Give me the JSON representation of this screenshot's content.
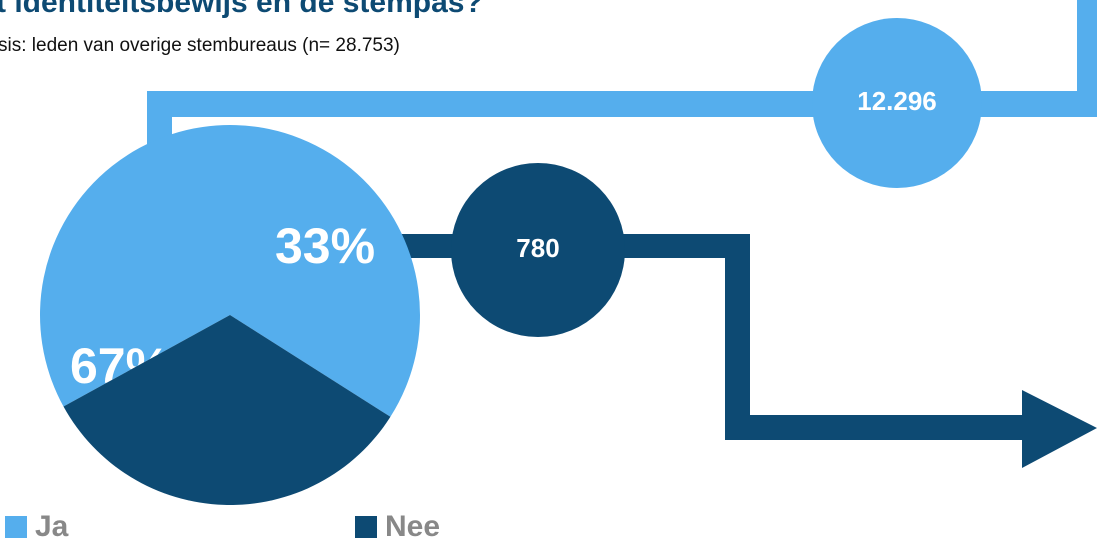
{
  "chart_data": {
    "type": "pie",
    "title": "t identiteitsbewijs en de stempas?",
    "subtitle": "sis: leden van overige stembureaus (n= 28.753)",
    "categories": [
      "Ja",
      "Nee"
    ],
    "values": [
      67,
      33
    ],
    "value_labels": [
      "67%",
      "33%"
    ],
    "colors": [
      "#55aeed",
      "#0d4a73"
    ],
    "annotations": [
      "12.296",
      "780"
    ]
  }
}
